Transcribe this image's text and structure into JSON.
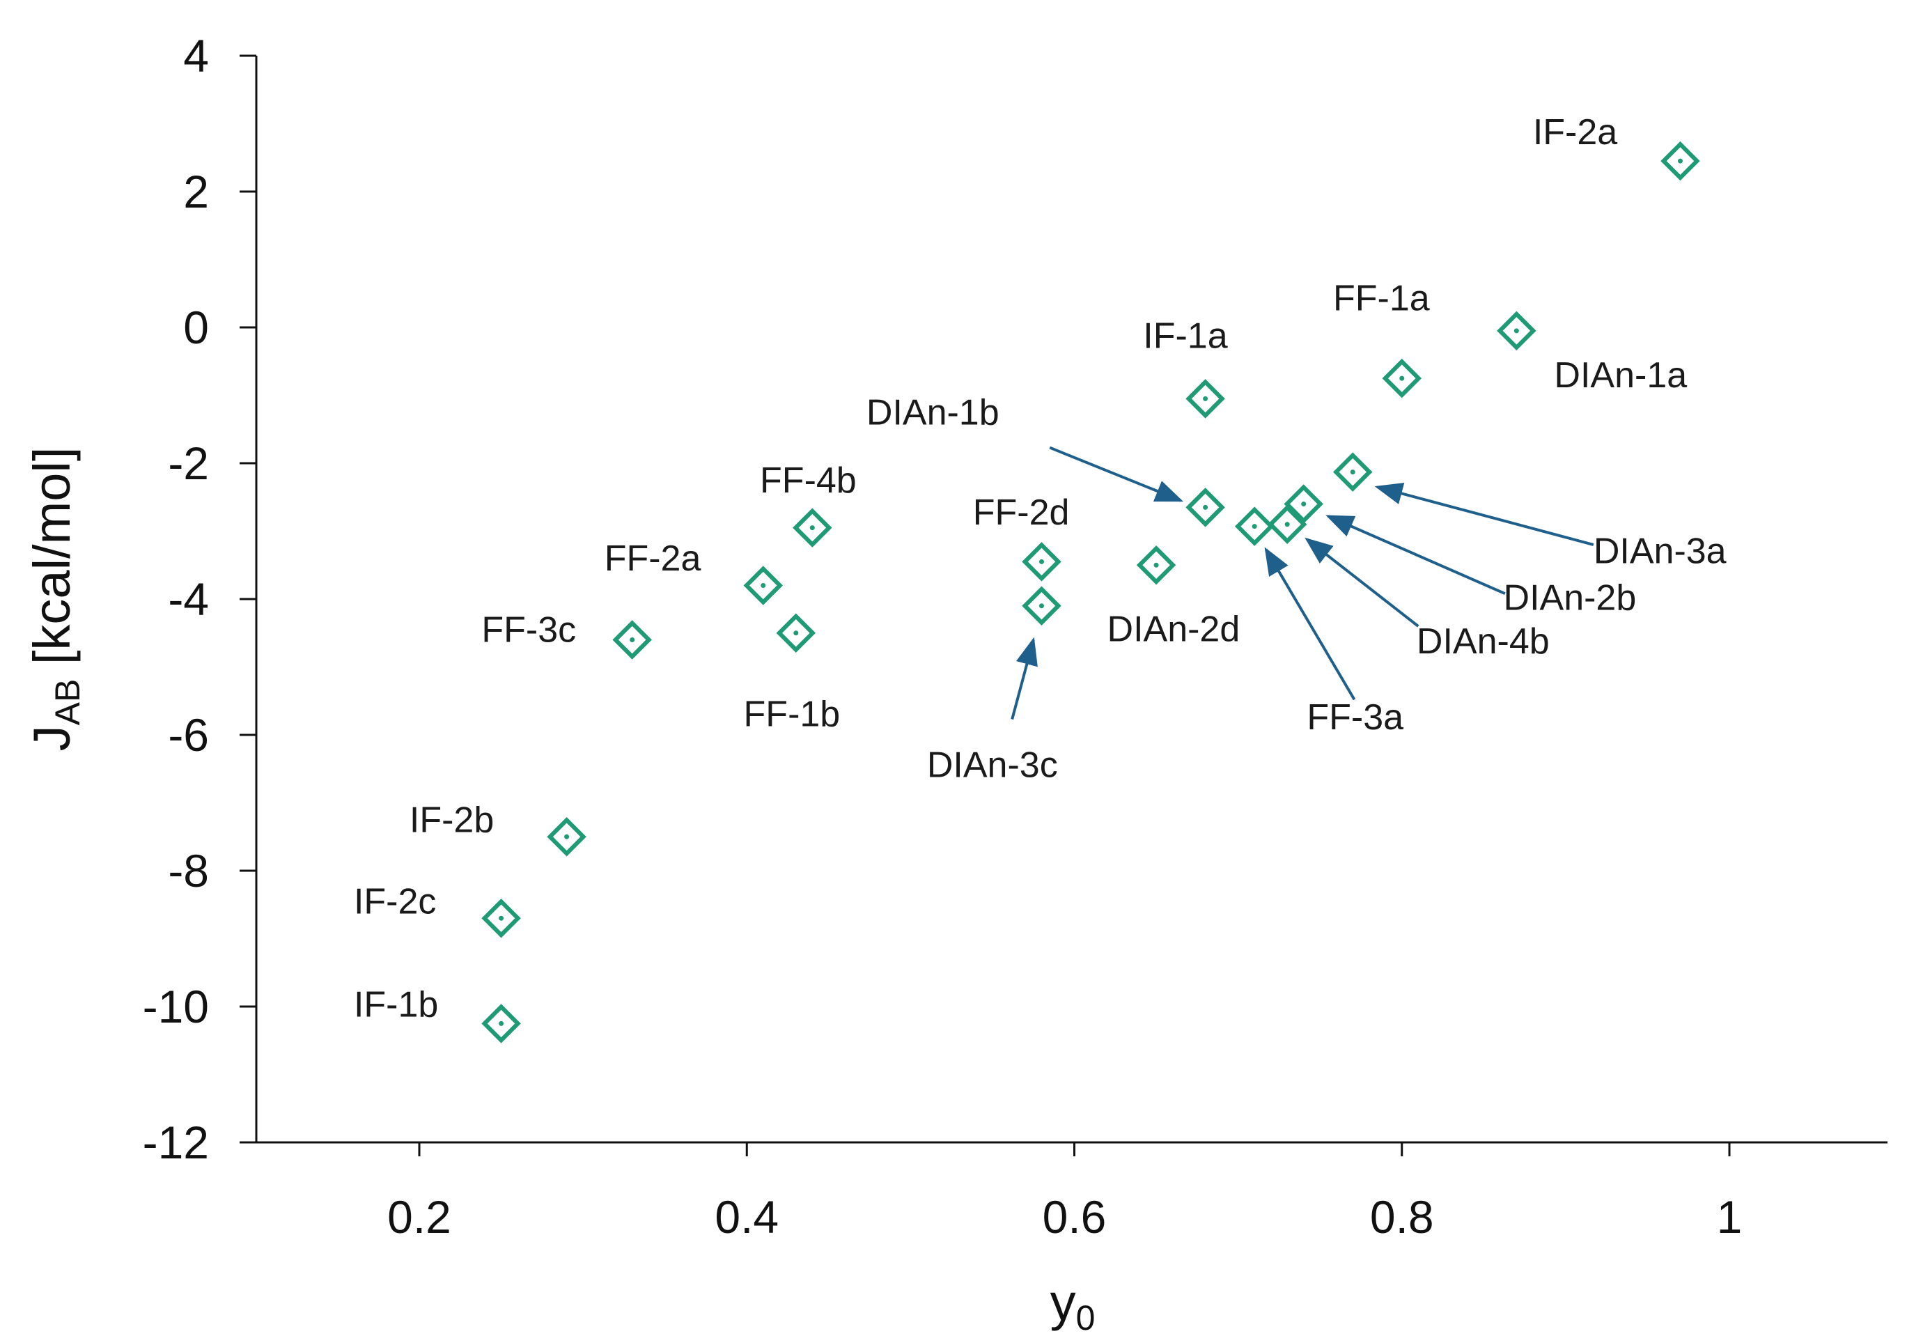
{
  "chart_data": {
    "type": "scatter",
    "title": "",
    "xlabel": "y",
    "xlabel_subscript": "0",
    "ylabel_main": "J",
    "ylabel_subscript": "AB",
    "ylabel_unit": " [kcal/mol]",
    "xlim": [
      0.1,
      1.1
    ],
    "ylim": [
      -12,
      4
    ],
    "x_ticks": [
      0.2,
      0.4,
      0.6,
      0.8,
      1.0
    ],
    "x_tick_labels": [
      "0.2",
      "0.4",
      "0.6",
      "0.8",
      "1"
    ],
    "y_ticks": [
      4,
      2,
      0,
      -2,
      -4,
      -6,
      -8,
      -10,
      -12
    ],
    "y_tick_labels": [
      "4",
      "2",
      "0",
      "-2",
      "-4",
      "-6",
      "-8",
      "-10",
      "-12"
    ],
    "grid": false,
    "marker": "diamond-open-with-dot",
    "marker_color": "#1e9a74",
    "arrow_color": "#1f5f8b",
    "points": [
      {
        "name": "IF-2a",
        "x": 0.97,
        "y": 2.45
      },
      {
        "name": "FF-1a",
        "x": 0.8,
        "y": -0.75
      },
      {
        "name": "DIAn-1a",
        "x": 0.87,
        "y": -0.05
      },
      {
        "name": "IF-1a",
        "x": 0.68,
        "y": -1.05
      },
      {
        "name": "DIAn-1b",
        "x": 0.68,
        "y": -2.65
      },
      {
        "name": "DIAn-3a",
        "x": 0.77,
        "y": -2.13
      },
      {
        "name": "DIAn-2b",
        "x": 0.74,
        "y": -2.6
      },
      {
        "name": "DIAn-4b",
        "x": 0.73,
        "y": -2.9
      },
      {
        "name": "FF-3a",
        "x": 0.71,
        "y": -2.93
      },
      {
        "name": "DIAn-2d",
        "x": 0.65,
        "y": -3.5
      },
      {
        "name": "FF-2d",
        "x": 0.58,
        "y": -3.45
      },
      {
        "name": "DIAn-3c",
        "x": 0.58,
        "y": -4.1
      },
      {
        "name": "FF-4b",
        "x": 0.44,
        "y": -2.95
      },
      {
        "name": "FF-2a",
        "x": 0.41,
        "y": -3.8
      },
      {
        "name": "FF-1b",
        "x": 0.43,
        "y": -4.5
      },
      {
        "name": "FF-3c",
        "x": 0.33,
        "y": -4.6
      },
      {
        "name": "IF-2b",
        "x": 0.29,
        "y": -7.5
      },
      {
        "name": "IF-2c",
        "x": 0.25,
        "y": -8.7
      },
      {
        "name": "IF-1b",
        "x": 0.25,
        "y": -10.25
      }
    ],
    "annotations": [
      {
        "text": "IF-2a",
        "anchor_x": 0.88,
        "anchor_y": 2.7,
        "align": "start"
      },
      {
        "text": "FF-1a",
        "anchor_x": 0.758,
        "anchor_y": 0.25,
        "align": "start"
      },
      {
        "text": "DIAn-1a",
        "anchor_x": 0.893,
        "anchor_y": -0.88,
        "align": "start"
      },
      {
        "text": "IF-1a",
        "anchor_x": 0.642,
        "anchor_y": -0.3,
        "align": "start"
      },
      {
        "text": "DIAn-1b",
        "anchor_x": 0.473,
        "anchor_y": -1.43,
        "align": "start",
        "arrow_from": [
          0.585,
          -1.77
        ],
        "arrow_to": [
          0.665,
          -2.55
        ]
      },
      {
        "text": "FF-4b",
        "anchor_x": 0.408,
        "anchor_y": -2.43,
        "align": "start"
      },
      {
        "text": "FF-2d",
        "anchor_x": 0.538,
        "anchor_y": -2.9,
        "align": "start"
      },
      {
        "text": "DIAn-3a",
        "anchor_x": 0.917,
        "anchor_y": -3.47,
        "align": "start",
        "arrow_from": [
          0.917,
          -3.2
        ],
        "arrow_to": [
          0.785,
          -2.35
        ]
      },
      {
        "text": "DIAn-2b",
        "anchor_x": 0.862,
        "anchor_y": -4.16,
        "align": "start",
        "arrow_from": [
          0.863,
          -3.92
        ],
        "arrow_to": [
          0.755,
          -2.78
        ]
      },
      {
        "text": "FF-2a",
        "anchor_x": 0.313,
        "anchor_y": -3.58,
        "align": "start"
      },
      {
        "text": "FF-3c",
        "anchor_x": 0.238,
        "anchor_y": -4.63,
        "align": "start"
      },
      {
        "text": "DIAn-2d",
        "anchor_x": 0.62,
        "anchor_y": -4.62,
        "align": "start"
      },
      {
        "text": "DIAn-4b",
        "anchor_x": 0.809,
        "anchor_y": -4.8,
        "align": "start",
        "arrow_from": [
          0.81,
          -4.4
        ],
        "arrow_to": [
          0.742,
          -3.12
        ]
      },
      {
        "text": "FF-1b",
        "anchor_x": 0.398,
        "anchor_y": -5.87,
        "align": "start"
      },
      {
        "text": "DIAn-3c",
        "anchor_x": 0.51,
        "anchor_y": -6.62,
        "align": "start",
        "arrow_from": [
          0.562,
          -5.77
        ],
        "arrow_to": [
          0.575,
          -4.6
        ]
      },
      {
        "text": "FF-3a",
        "anchor_x": 0.742,
        "anchor_y": -5.92,
        "align": "start",
        "arrow_from": [
          0.771,
          -5.48
        ],
        "arrow_to": [
          0.717,
          -3.27
        ]
      },
      {
        "text": "IF-2b",
        "anchor_x": 0.194,
        "anchor_y": -7.43,
        "align": "start"
      },
      {
        "text": "IF-2c",
        "anchor_x": 0.16,
        "anchor_y": -8.63,
        "align": "start"
      },
      {
        "text": "IF-1b",
        "anchor_x": 0.16,
        "anchor_y": -10.15,
        "align": "start"
      }
    ]
  }
}
